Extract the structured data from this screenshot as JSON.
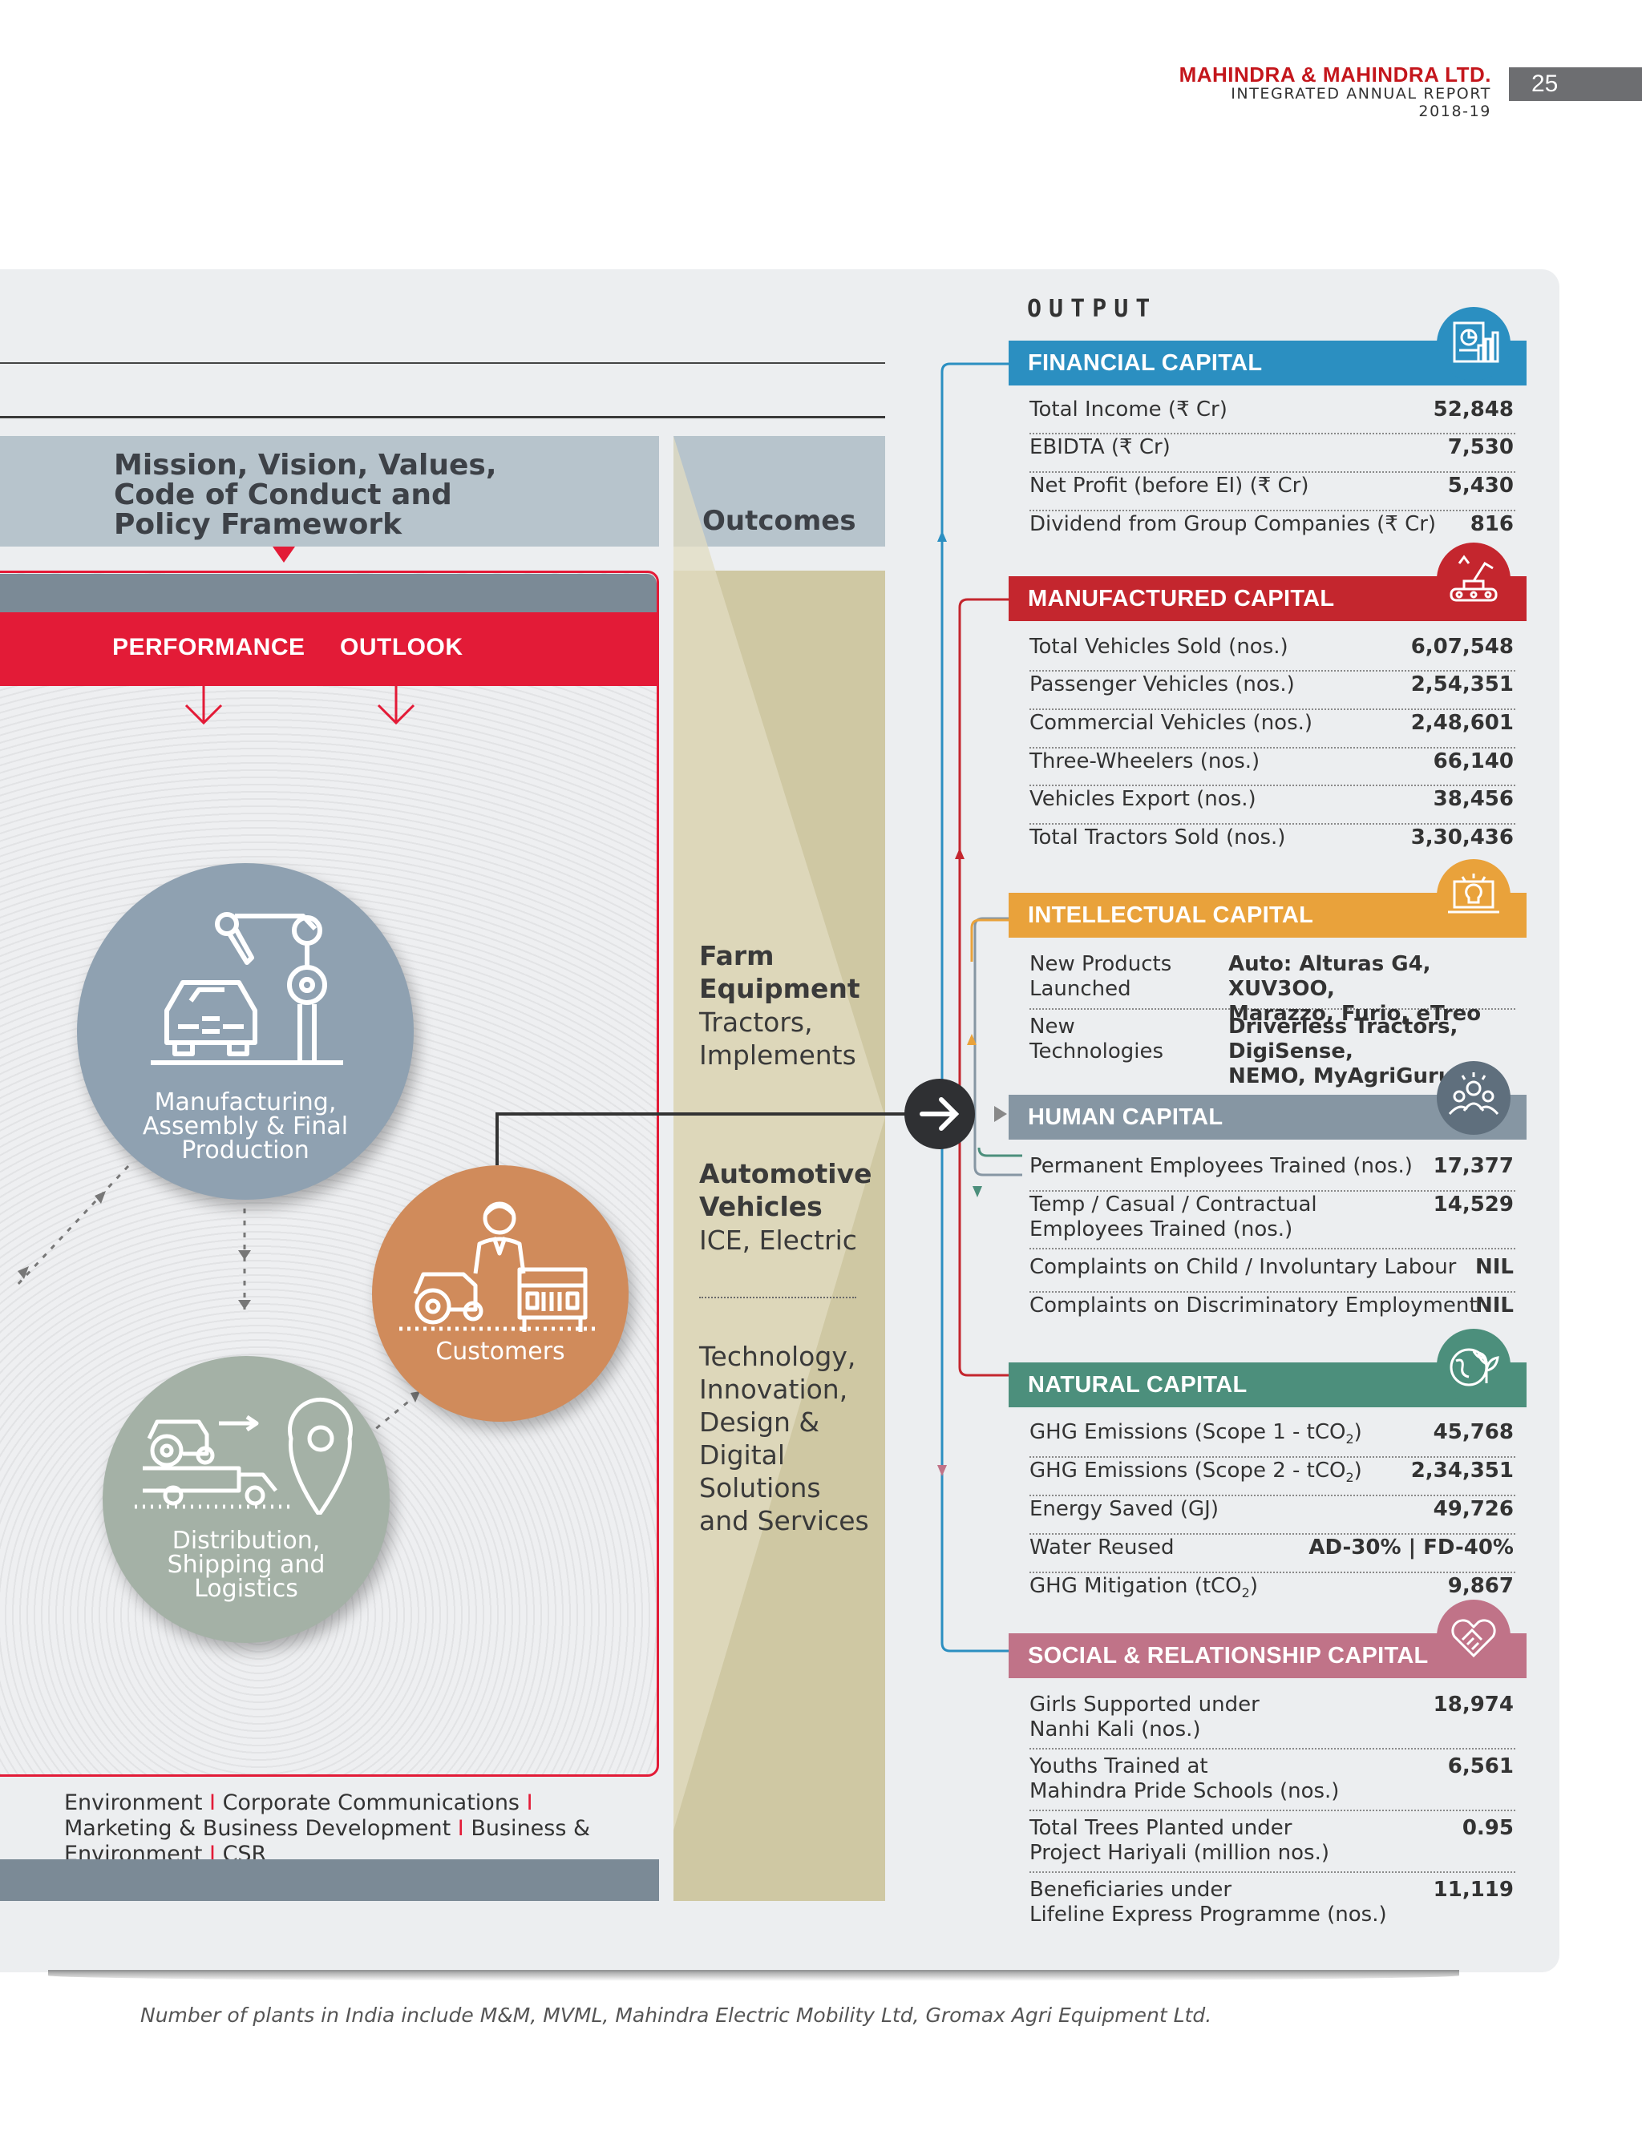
{
  "header": {
    "company": "MAHINDRA & MAHINDRA LTD.",
    "report": "INTEGRATED ANNUAL REPORT 2018-19",
    "page_number": "25"
  },
  "left": {
    "mission_line1": "Mission, Vision, Values,",
    "mission_line2": "Code of Conduct and",
    "mission_line3": "Policy Framework",
    "performance": "PERFORMANCE",
    "outlook": "OUTLOOK",
    "circles": {
      "manufacturing_line1": "Manufacturing,",
      "manufacturing_line2": "Assembly & Final",
      "manufacturing_line3": "Production",
      "customers": "Customers",
      "distribution_line1": "Distribution,",
      "distribution_line2": "Shipping and",
      "distribution_line3": "Logistics"
    },
    "functions": {
      "f1": "Environment",
      "f2": "Corporate Communications",
      "f3": "Marketing &",
      "f4": "Business Development",
      "f5": "Business & Environment",
      "f6": "CSR",
      "separator": "I"
    }
  },
  "outcomes": {
    "title": "Outcomes",
    "farm_h1": "Farm",
    "farm_h2": "Equipment",
    "farm_s1": "Tractors,",
    "farm_s2": "Implements",
    "auto_h1": "Automotive",
    "auto_h2": "Vehicles",
    "auto_s": "ICE, Electric",
    "tech_1": "Technology,",
    "tech_2": "Innovation,",
    "tech_3": "Design &",
    "tech_4": "Digital",
    "tech_5": "Solutions",
    "tech_6": "and Services"
  },
  "output": {
    "title": "OUTPUT",
    "financial": {
      "title": "FINANCIAL CAPITAL",
      "color": "#2b8fc1",
      "rows": [
        {
          "label": "Total Income (₹ Cr)",
          "value": "52,848"
        },
        {
          "label": "EBIDTA (₹ Cr)",
          "value": "7,530"
        },
        {
          "label": "Net Profit (before EI) (₹ Cr)",
          "value": "5,430"
        },
        {
          "label": "Dividend from Group Companies (₹ Cr)",
          "value": "816"
        }
      ]
    },
    "manufactured": {
      "title": "MANUFACTURED CAPITAL",
      "color": "#c4262e",
      "rows": [
        {
          "label": "Total Vehicles Sold (nos.)",
          "value": "6,07,548"
        },
        {
          "label": "Passenger Vehicles (nos.)",
          "value": "2,54,351"
        },
        {
          "label": "Commercial Vehicles (nos.)",
          "value": "2,48,601"
        },
        {
          "label": "Three-Wheelers (nos.)",
          "value": "66,140"
        },
        {
          "label": "Vehicles Export (nos.)",
          "value": "38,456"
        },
        {
          "label": "Total Tractors Sold (nos.)",
          "value": "3,30,436"
        }
      ]
    },
    "intellectual": {
      "title": "INTELLECTUAL CAPITAL",
      "color": "#e9a23b",
      "rows": [
        {
          "label1": "New Products",
          "label2": "Launched",
          "value1": "Auto: Alturas G4, XUV3OO,",
          "value2": "Marazzo, Furio, eTreo"
        },
        {
          "label1": "New",
          "label2": "Technologies",
          "value1": "Driverless Tractors, DigiSense,",
          "value2": "NEMO, MyAgriGuru"
        }
      ]
    },
    "human": {
      "title": "HUMAN CAPITAL",
      "color": "#8696a3",
      "rows": [
        {
          "label": "Permanent Employees Trained (nos.)",
          "value": "17,377"
        },
        {
          "label1": "Temp / Casual / Contractual",
          "label2": "Employees Trained (nos.)",
          "value": "14,529"
        },
        {
          "label": "Complaints on Child / Involuntary Labour",
          "value": "NIL"
        },
        {
          "label": "Complaints on Discriminatory Employment",
          "value": "NIL"
        }
      ]
    },
    "natural": {
      "title": "NATURAL CAPITAL",
      "color": "#4c8f7c",
      "rows": [
        {
          "label": "GHG Emissions (Scope 1 - tCO",
          "sub": "2",
          "tail": ")",
          "value": "45,768"
        },
        {
          "label": "GHG Emissions (Scope 2 - tCO",
          "sub": "2",
          "tail": ")",
          "value": "2,34,351"
        },
        {
          "label": "Energy Saved (GJ)",
          "value": "49,726"
        },
        {
          "label": "Water Reused",
          "value": "AD-30% | FD-40%"
        },
        {
          "label": "GHG Mitigation (tCO",
          "sub": "2",
          "tail": ")",
          "value": "9,867"
        }
      ]
    },
    "social": {
      "title": "SOCIAL & RELATIONSHIP CAPITAL",
      "color": "#c07388",
      "rows": [
        {
          "label1": "Girls Supported under",
          "label2": "Nanhi Kali (nos.)",
          "value": "18,974"
        },
        {
          "label1": "Youths Trained at",
          "label2": "Mahindra Pride Schools (nos.)",
          "value": "6,561"
        },
        {
          "label1": "Total Trees Planted under",
          "label2": "Project Hariyali (million nos.)",
          "value": "0.95"
        },
        {
          "label1": "Beneficiaries under",
          "label2": "Lifeline Express Programme (nos.)",
          "value": "11,119"
        }
      ]
    }
  },
  "footnote": "Number of plants in India include M&M, MVML, Mahindra Electric Mobility Ltd, Gromax Agri Equipment Ltd."
}
